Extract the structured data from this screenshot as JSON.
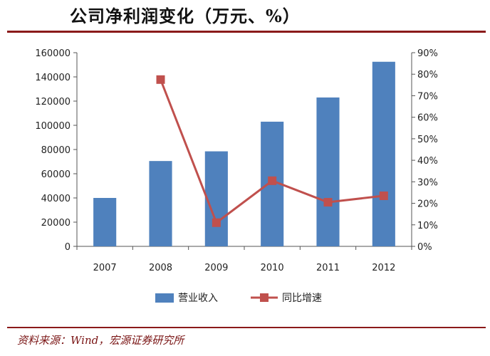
{
  "title": "公司净利润变化（万元、%）",
  "source_note": "资料来源：Wind，宏源证券研究所",
  "colors": {
    "bar": "#4f81bd",
    "line": "#c0504d",
    "rule": "#8b1a1a",
    "axis": "#555555"
  },
  "chart_data": {
    "type": "bar",
    "categories": [
      "2007",
      "2008",
      "2009",
      "2010",
      "2011",
      "2012"
    ],
    "series": [
      {
        "name": "营业收入",
        "type": "bar",
        "axis": "left",
        "values": [
          40000,
          70500,
          78500,
          103000,
          123000,
          152500
        ]
      },
      {
        "name": "同比增速",
        "type": "line",
        "axis": "right",
        "values": [
          null,
          77.5,
          11.0,
          30.5,
          20.5,
          23.5
        ]
      }
    ],
    "y_left": {
      "ylim": [
        0,
        160000
      ],
      "ticks": [
        "0",
        "20000",
        "40000",
        "60000",
        "80000",
        "100000",
        "120000",
        "140000",
        "160000"
      ]
    },
    "y_right": {
      "ylim": [
        0,
        90
      ],
      "ticks": [
        "0%",
        "10%",
        "20%",
        "30%",
        "40%",
        "50%",
        "60%",
        "70%",
        "80%",
        "90%"
      ]
    },
    "grid": false,
    "legend_position": "bottom"
  }
}
